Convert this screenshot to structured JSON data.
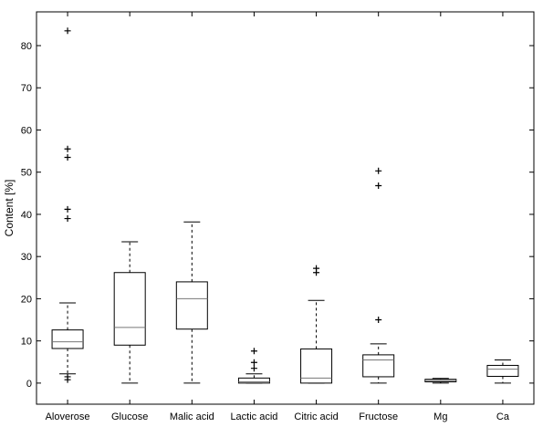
{
  "chart_data": {
    "type": "box",
    "title": "",
    "xlabel": "",
    "ylabel": "Content [%]",
    "ylim": [
      -5,
      88
    ],
    "yticks": [
      0,
      10,
      20,
      30,
      40,
      50,
      60,
      70,
      80
    ],
    "grid": false,
    "categories": [
      "Aloverose",
      "Glucose",
      "Malic acid",
      "Lactic acid",
      "Citric acid",
      "Fructose",
      "Mg",
      "Ca"
    ],
    "boxes": [
      {
        "category": "Aloverose",
        "whisker_low": 2.2,
        "q1": 8.2,
        "median": 9.8,
        "q3": 12.6,
        "whisker_high": 19.0,
        "outliers": [
          83.5,
          55.5,
          53.5,
          41.2,
          39.0,
          1.5,
          0.8
        ]
      },
      {
        "category": "Glucose",
        "whisker_low": 0.0,
        "q1": 9.0,
        "median": 13.2,
        "q3": 26.2,
        "whisker_high": 33.5,
        "outliers": []
      },
      {
        "category": "Malic acid",
        "whisker_low": 0.0,
        "q1": 12.8,
        "median": 20.0,
        "q3": 24.0,
        "whisker_high": 38.2,
        "outliers": []
      },
      {
        "category": "Lactic acid",
        "whisker_low": 0.0,
        "q1": 0.0,
        "median": 0.3,
        "q3": 1.2,
        "whisker_high": 2.2,
        "outliers": [
          7.6,
          4.9,
          3.5
        ]
      },
      {
        "category": "Citric acid",
        "whisker_low": 0.0,
        "q1": 0.0,
        "median": 1.2,
        "q3": 8.1,
        "whisker_high": 19.6,
        "outliers": [
          27.2,
          26.2
        ]
      },
      {
        "category": "Fructose",
        "whisker_low": 0.0,
        "q1": 1.5,
        "median": 5.5,
        "q3": 6.7,
        "whisker_high": 9.3,
        "outliers": [
          50.3,
          46.8,
          15.0
        ]
      },
      {
        "category": "Mg",
        "whisker_low": 0.0,
        "q1": 0.3,
        "median": 0.6,
        "q3": 0.9,
        "whisker_high": 1.1,
        "outliers": []
      },
      {
        "category": "Ca",
        "whisker_low": 0.0,
        "q1": 1.6,
        "median": 3.3,
        "q3": 4.2,
        "whisker_high": 5.5,
        "outliers": []
      }
    ]
  }
}
